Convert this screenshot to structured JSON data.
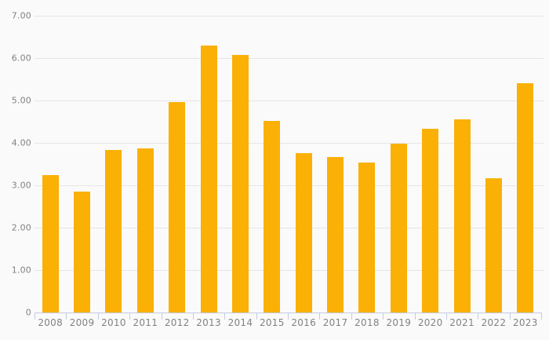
{
  "chart_data": {
    "type": "bar",
    "title": "",
    "xlabel": "",
    "ylabel": "",
    "categories": [
      "2008",
      "2009",
      "2010",
      "2011",
      "2012",
      "2013",
      "2014",
      "2015",
      "2016",
      "2017",
      "2018",
      "2019",
      "2020",
      "2021",
      "2022",
      "2023"
    ],
    "values": [
      3.24,
      2.85,
      3.84,
      3.87,
      4.96,
      6.3,
      6.08,
      4.52,
      3.76,
      3.67,
      3.53,
      3.98,
      4.34,
      4.56,
      3.16,
      5.41
    ],
    "ylim": [
      0,
      7
    ],
    "y_tick_labels": [
      "0",
      "1.00",
      "2.00",
      "3.00",
      "4.00",
      "5.00",
      "6.00",
      "7.00"
    ],
    "y_tick_values": [
      0,
      1,
      2,
      3,
      4,
      5,
      6,
      7
    ],
    "grid": true,
    "legend_position": "none",
    "colors": {
      "bar": "#FAB005",
      "background": "#FAFAFA",
      "gridline": "#E6E6E6",
      "axis_line": "#C3CCE3",
      "tick": "#C3CCE3",
      "label_text": "#828282"
    }
  }
}
